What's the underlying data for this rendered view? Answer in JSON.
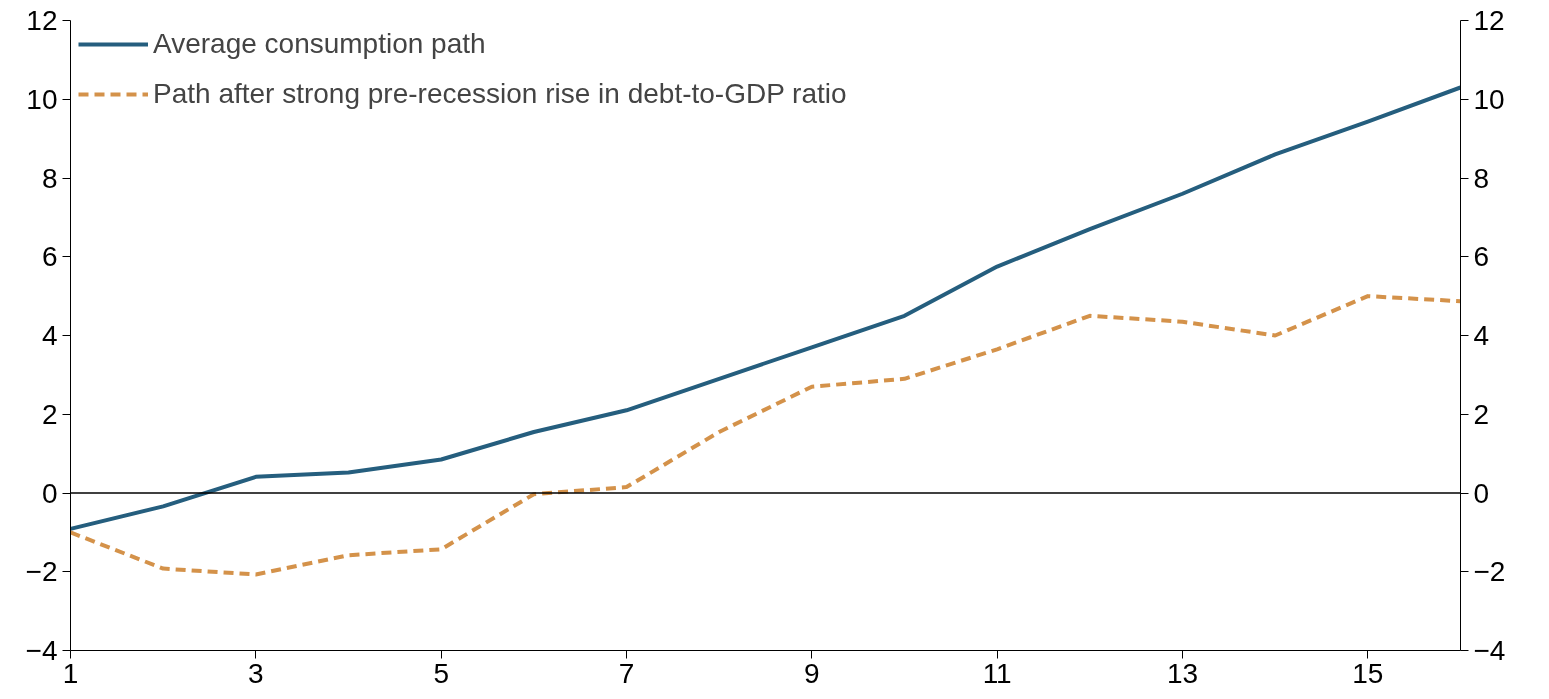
{
  "chart_data": {
    "type": "line",
    "x": [
      1,
      2,
      3,
      4,
      5,
      6,
      7,
      8,
      9,
      10,
      11,
      12,
      13,
      14,
      15,
      16
    ],
    "series": [
      {
        "name": "Average consumption path",
        "color": "#255e7e",
        "line_style": "solid",
        "values": [
          -0.91,
          -0.34,
          0.41,
          0.52,
          0.85,
          1.55,
          2.1,
          2.9,
          3.7,
          4.5,
          5.75,
          6.7,
          7.6,
          8.6,
          9.43,
          10.3
        ]
      },
      {
        "name": "Path after strong pre-recession rise in debt-to-GDP ratio",
        "color": "#d4924a",
        "line_style": "dashed",
        "values": [
          -1.0,
          -1.92,
          -2.07,
          -1.58,
          -1.43,
          -0.03,
          0.15,
          1.55,
          2.7,
          2.9,
          3.65,
          4.5,
          4.35,
          4.0,
          5.0,
          4.87
        ]
      }
    ],
    "xlim": [
      1,
      16
    ],
    "xticks": [
      1,
      3,
      5,
      7,
      9,
      11,
      13,
      15
    ],
    "ylim": [
      -4,
      12
    ],
    "yticks": [
      -4,
      -2,
      0,
      2,
      4,
      6,
      8,
      10,
      12
    ],
    "y2lim": [
      -4,
      12
    ],
    "y2ticks": [
      -4,
      -2,
      0,
      2,
      4,
      6,
      8,
      10,
      12
    ],
    "ref_lines": [
      {
        "axis": "y",
        "value": 0,
        "color": "#000000"
      }
    ],
    "grid": false,
    "legend": "top left",
    "marker": "none"
  }
}
